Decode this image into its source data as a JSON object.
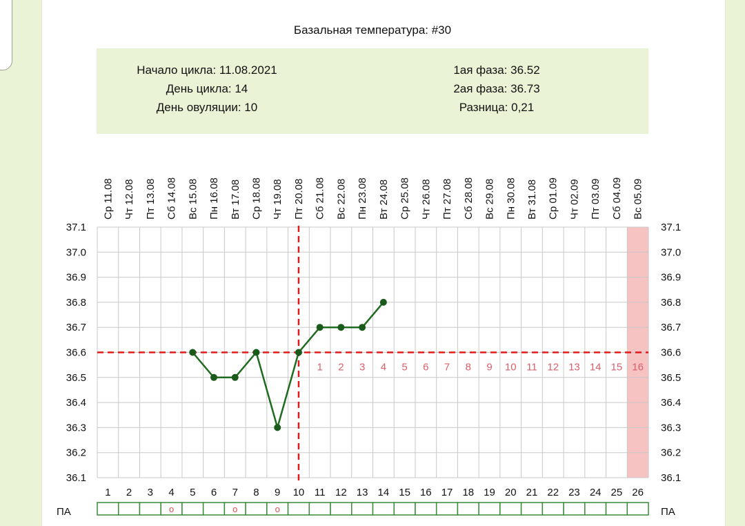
{
  "title": "Базальная температура: #30",
  "info": {
    "left": [
      "Начало цикла: 11.08.2021",
      "День цикла: 14",
      "День овуляции: 10"
    ],
    "right": [
      "1ая фаза: 36.52",
      "2ая фаза: 36.73",
      "Разница: 0,21"
    ]
  },
  "chart_data": {
    "type": "line",
    "title": "Базальная температура: #30",
    "xlabel": "",
    "ylabel": "",
    "ylim": [
      36.1,
      37.1
    ],
    "yticks": [
      "37.1",
      "37.0",
      "36.9",
      "36.8",
      "36.7",
      "36.6",
      "36.5",
      "36.4",
      "36.3",
      "36.2",
      "36.1"
    ],
    "grid": true,
    "days": [
      1,
      2,
      3,
      4,
      5,
      6,
      7,
      8,
      9,
      10,
      11,
      12,
      13,
      14,
      15,
      16,
      17,
      18,
      19,
      20,
      21,
      22,
      23,
      24,
      25,
      26
    ],
    "dates": [
      "Ср 11.08",
      "Чт 12.08",
      "Пт 13.08",
      "Сб 14.08",
      "Вс 15.08",
      "Пн 16.08",
      "Вт 17.08",
      "Ср 18.08",
      "Чт 19.08",
      "Пт 20.08",
      "Сб 21.08",
      "Вс 22.08",
      "Пн 23.08",
      "Вт 24.08",
      "Ср 25.08",
      "Чт 26.08",
      "Пт 27.08",
      "Сб 28.08",
      "Вс 29.08",
      "Пн 30.08",
      "Вт 31.08",
      "Ср 01.09",
      "Чт 02.09",
      "Пт 03.09",
      "Сб 04.09",
      "Вс 05.09"
    ],
    "series": [
      {
        "points": [
          {
            "day": 5,
            "value": 36.6
          },
          {
            "day": 6,
            "value": 36.5
          },
          {
            "day": 7,
            "value": 36.5
          },
          {
            "day": 8,
            "value": 36.6
          },
          {
            "day": 9,
            "value": 36.3
          },
          {
            "day": 10,
            "value": 36.6
          },
          {
            "day": 11,
            "value": 36.7
          },
          {
            "day": 12,
            "value": 36.7
          },
          {
            "day": 13,
            "value": 36.7
          },
          {
            "day": 14,
            "value": 36.8
          }
        ]
      }
    ],
    "coverline": 36.6,
    "ovulation_day": 10,
    "highlight_day": 26,
    "phase2_numbers": [
      "1",
      "2",
      "3",
      "4",
      "5",
      "6",
      "7",
      "8",
      "9",
      "10",
      "11",
      "12",
      "13",
      "14",
      "15",
      "16"
    ],
    "pa_label": "ПА",
    "pa_marks": [
      {
        "day": 4,
        "text": "о"
      },
      {
        "day": 7,
        "text": "о"
      },
      {
        "day": 9,
        "text": "о"
      }
    ],
    "colors": {
      "line": "#1f6b1f",
      "marker": "#1a5a1a",
      "dashed": "#e01a1a",
      "highlight": "#f7c2c2",
      "phase2_text": "#d9606a",
      "pa_border": "#3a8a3a",
      "grid": "#c8c8c8"
    }
  }
}
